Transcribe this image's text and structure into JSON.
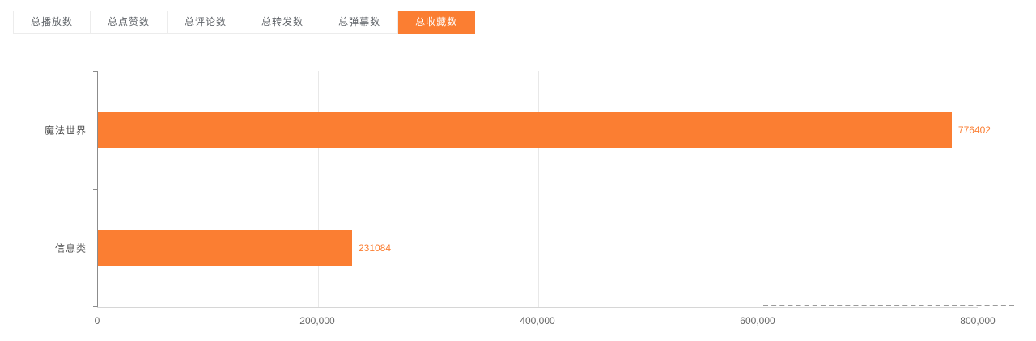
{
  "tabs": [
    {
      "label": "总播放数",
      "active": false
    },
    {
      "label": "总点赞数",
      "active": false
    },
    {
      "label": "总评论数",
      "active": false
    },
    {
      "label": "总转发数",
      "active": false
    },
    {
      "label": "总弹幕数",
      "active": false
    },
    {
      "label": "总收藏数",
      "active": true
    }
  ],
  "colors": {
    "accent": "#fb7e32",
    "bar": "#fb7e32",
    "grid": "#e8e8e8",
    "axis_text": "#666666",
    "category_text": "#4a4a4a"
  },
  "chart_data": {
    "type": "bar",
    "orientation": "horizontal",
    "title": "",
    "categories": [
      "魔法世界",
      "信息类"
    ],
    "values": [
      776402,
      231084
    ],
    "value_labels": [
      "776402",
      "231084"
    ],
    "xlim": [
      0,
      800000
    ],
    "x_ticks": [
      "0",
      "200,000",
      "400,000",
      "600,000",
      "800,000"
    ],
    "tick_positions_pct": [
      0,
      25,
      50,
      75,
      100
    ],
    "grid": true,
    "legend": "none",
    "bar_color": "#fb7e32"
  }
}
